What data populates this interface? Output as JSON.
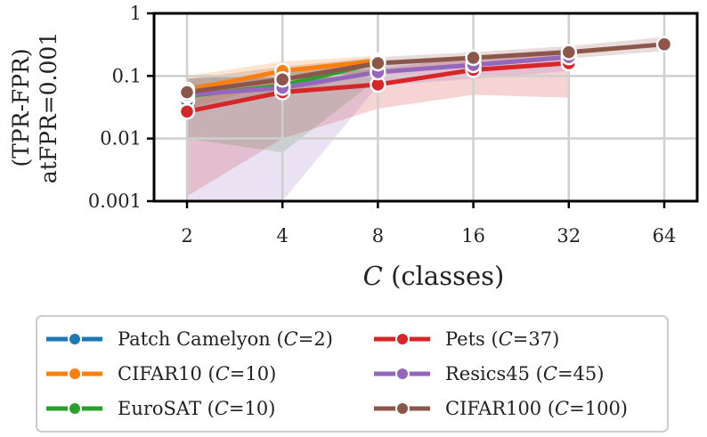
{
  "chart_data": {
    "type": "line",
    "xlabel_var": "C",
    "xlabel_rest": " (classes)",
    "ylabel_line1": "(TPR-FPR)",
    "ylabel_line2": "atFPR=0.001",
    "x_ticks": [
      "2",
      "4",
      "8",
      "16",
      "32",
      "64"
    ],
    "x_values": [
      2,
      4,
      8,
      16,
      32,
      64
    ],
    "y_scale": "log",
    "ylim": [
      0.001,
      1
    ],
    "y_ticks": [
      {
        "value": 0.001,
        "label": "0.001"
      },
      {
        "value": 0.01,
        "label": "0.01"
      },
      {
        "value": 0.1,
        "label": "0.1"
      },
      {
        "value": 1,
        "label": "1"
      }
    ],
    "grid": true,
    "legend_position": "bottom",
    "series": [
      {
        "name": "Patch Camelyon",
        "C": "2",
        "color": "#1f77b4",
        "x": [
          2
        ],
        "y": [
          0.04
        ],
        "lo": [
          0.018
        ],
        "hi": [
          0.08
        ]
      },
      {
        "name": "CIFAR10",
        "C": "10",
        "color": "#ff7f0e",
        "x": [
          2,
          4,
          8
        ],
        "y": [
          0.06,
          0.12,
          0.175
        ],
        "lo": [
          0.03,
          0.08,
          0.15
        ],
        "hi": [
          0.1,
          0.17,
          0.21
        ]
      },
      {
        "name": "EuroSAT",
        "C": "10",
        "color": "#2ca02c",
        "x": [
          2,
          4,
          8
        ],
        "y": [
          0.048,
          0.07,
          0.165
        ],
        "lo": [
          0.01,
          0.006,
          0.09
        ],
        "hi": [
          0.09,
          0.11,
          0.2
        ]
      },
      {
        "name": "Pets",
        "C": "37",
        "color": "#d62728",
        "x": [
          2,
          4,
          8,
          16,
          32
        ],
        "y": [
          0.027,
          0.055,
          0.073,
          0.125,
          0.16
        ],
        "lo": [
          0.0012,
          0.01,
          0.03,
          0.05,
          0.045
        ],
        "hi": [
          0.07,
          0.1,
          0.13,
          0.2,
          0.23
        ]
      },
      {
        "name": "Resics45",
        "C": "45",
        "color": "#9467bd",
        "x": [
          2,
          4,
          8,
          16,
          32
        ],
        "y": [
          0.05,
          0.065,
          0.115,
          0.15,
          0.2
        ],
        "lo": [
          0.001,
          0.001,
          0.07,
          0.09,
          0.12
        ],
        "hi": [
          0.09,
          0.11,
          0.17,
          0.21,
          0.27
        ]
      },
      {
        "name": "CIFAR100",
        "C": "100",
        "color": "#8c564b",
        "x": [
          2,
          4,
          8,
          16,
          32,
          64
        ],
        "y": [
          0.055,
          0.088,
          0.16,
          0.195,
          0.24,
          0.32
        ],
        "lo": [
          0.03,
          0.05,
          0.12,
          0.15,
          0.19,
          0.25
        ],
        "hi": [
          0.09,
          0.14,
          0.2,
          0.24,
          0.3,
          0.42
        ]
      }
    ]
  }
}
